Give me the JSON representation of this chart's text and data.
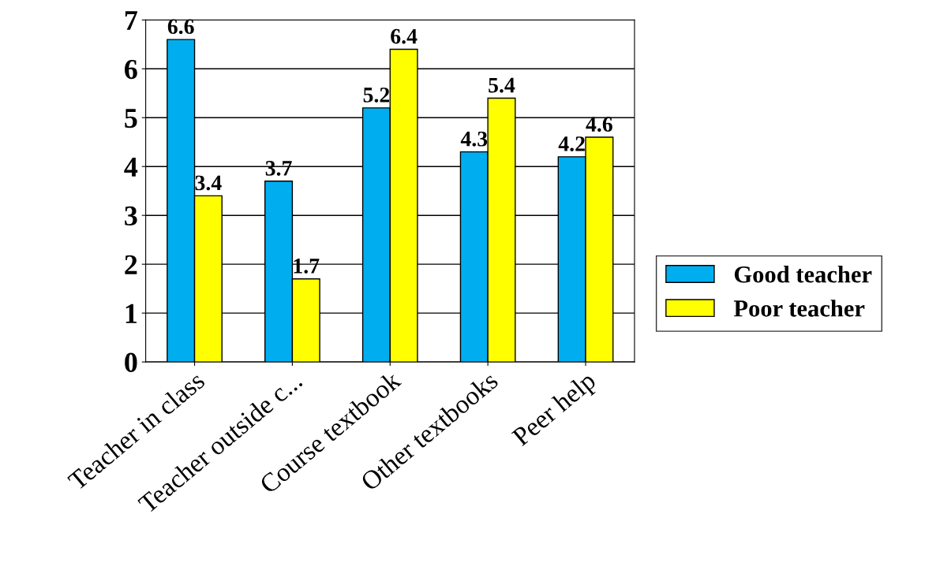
{
  "chart_data": {
    "type": "bar",
    "categories": [
      "Teacher in class",
      "Teacher outside c...",
      "Course textbook",
      "Other textbooks",
      "Peer help"
    ],
    "series": [
      {
        "name": "Good teacher",
        "color": "#00aeef",
        "values": [
          6.6,
          3.7,
          5.2,
          4.3,
          4.2
        ]
      },
      {
        "name": "Poor teacher",
        "color": "#ffff00",
        "values": [
          3.4,
          1.7,
          6.4,
          5.4,
          4.6
        ]
      }
    ],
    "ylim": [
      0,
      7
    ],
    "yticks": [
      0,
      1,
      2,
      3,
      4,
      5,
      6,
      7
    ],
    "grid": "y",
    "legend": "right",
    "data_labels": true
  }
}
